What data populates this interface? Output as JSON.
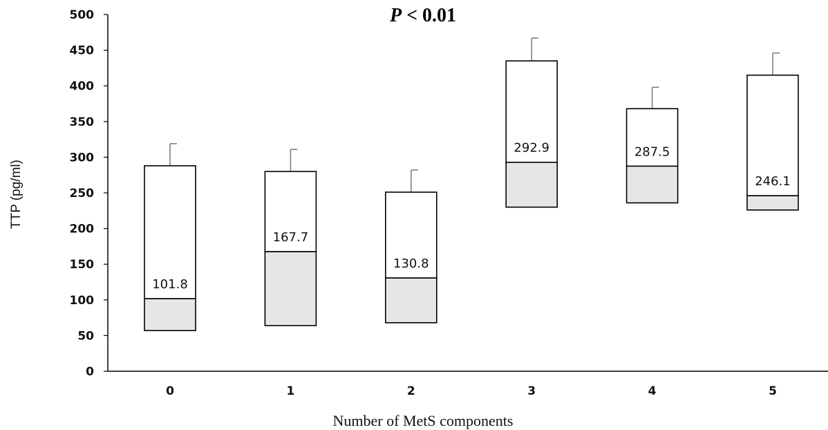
{
  "chart_data": {
    "type": "box",
    "title_italic": "P",
    "title_rest": " < 0.01",
    "xlabel": "Number of MetS components",
    "ylabel": "TTP (pg/ml)",
    "ylim": [
      0,
      500
    ],
    "yticks": [
      0,
      50,
      100,
      150,
      200,
      250,
      300,
      350,
      400,
      450,
      500
    ],
    "categories": [
      "0",
      "1",
      "2",
      "3",
      "4",
      "5"
    ],
    "boxes": [
      {
        "category": "0",
        "q1": 57,
        "median": 101.8,
        "q3": 288,
        "whisker_max": 319,
        "median_label": "101.8"
      },
      {
        "category": "1",
        "q1": 64,
        "median": 167.7,
        "q3": 280,
        "whisker_max": 311,
        "median_label": "167.7"
      },
      {
        "category": "2",
        "q1": 68,
        "median": 130.8,
        "q3": 251,
        "whisker_max": 282,
        "median_label": "130.8"
      },
      {
        "category": "3",
        "q1": 230,
        "median": 292.9,
        "q3": 435,
        "whisker_max": 467,
        "median_label": "292.9"
      },
      {
        "category": "4",
        "q1": 236,
        "median": 287.5,
        "q3": 368,
        "whisker_max": 398,
        "median_label": "287.5"
      },
      {
        "category": "5",
        "q1": 226,
        "median": 246.1,
        "q3": 415,
        "whisker_max": 446,
        "median_label": "246.1"
      }
    ],
    "grid": false,
    "colors": {
      "lower_box_fill": "#e6e6e6",
      "upper_box_fill": "#ffffff",
      "box_stroke": "#000000",
      "whisker": "#7f7f7f",
      "axis": "#000000"
    }
  }
}
